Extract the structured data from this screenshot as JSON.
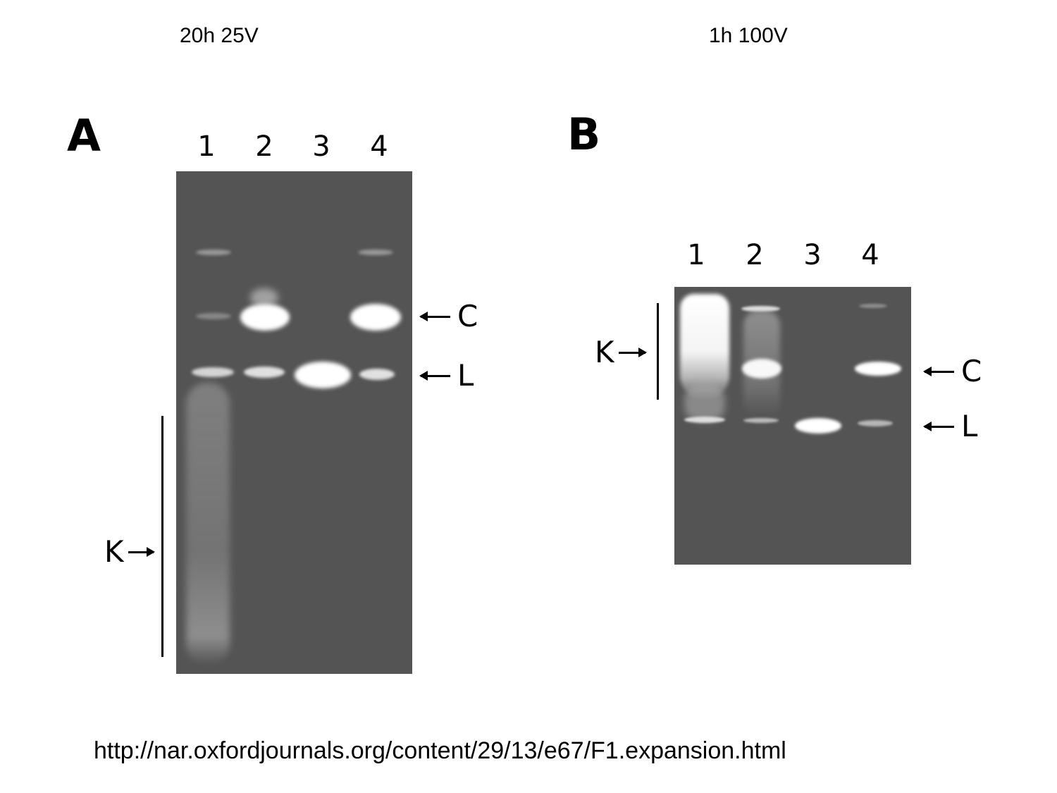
{
  "conditions": {
    "left": "20h 25V",
    "right": "1h 100V"
  },
  "panel_a": {
    "letter": "A",
    "lanes": [
      "1",
      "2",
      "3",
      "4"
    ],
    "markers": {
      "c": "C",
      "l": "L",
      "k": "K"
    }
  },
  "panel_b": {
    "letter": "B",
    "lanes": [
      "1",
      "2",
      "3",
      "4"
    ],
    "markers": {
      "c": "C",
      "l": "L",
      "k": "K"
    }
  },
  "source_url": "http://nar.oxfordjournals.org/content/29/13/e67/F1.expansion.html"
}
